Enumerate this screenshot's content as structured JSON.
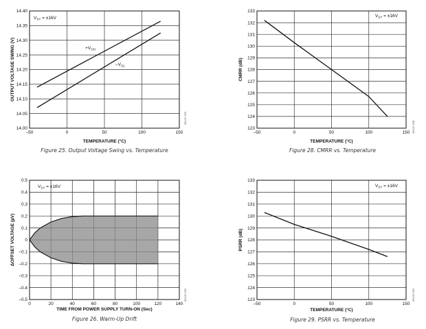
{
  "chart_data": [
    {
      "type": "line",
      "caption": "Figure 25. Output Voltage Swing vs. Temperature",
      "code": "06147-025",
      "xlabel": "TEMPERATURE (°C)",
      "ylabel": "OUTPUT VOLTAGE SWING (V)",
      "xlim": [
        -50,
        150
      ],
      "ylim": [
        14.0,
        14.4
      ],
      "xticks": [
        -50,
        0,
        50,
        100,
        150
      ],
      "xtick_labels": [
        "–50",
        "0",
        "50",
        "100",
        "150"
      ],
      "yticks": [
        14.0,
        14.05,
        14.1,
        14.15,
        14.2,
        14.25,
        14.3,
        14.35,
        14.4
      ],
      "ytick_labels": [
        "14.00",
        "14.05",
        "14.10",
        "14.15",
        "14.20",
        "14.25",
        "14.30",
        "14.35",
        "14.40"
      ],
      "annotation": {
        "main": "V",
        "sub": "SY",
        "rest": " = ±16V"
      },
      "series": [
        {
          "name": "+VOH",
          "label_main": "+V",
          "label_sub": "OH",
          "x": [
            -40,
            125
          ],
          "y": [
            14.14,
            14.365
          ]
        },
        {
          "name": "–VOL",
          "label_main": "–V",
          "label_sub": "OL",
          "x": [
            -40,
            125
          ],
          "y": [
            14.07,
            14.325
          ]
        }
      ]
    },
    {
      "type": "line",
      "caption": "Figure 28. CMRR vs. Temperature",
      "code": "06147-028",
      "xlabel": "TEMPERATURE (°C)",
      "ylabel": "CMRR (dB)",
      "xlim": [
        -50,
        150
      ],
      "ylim": [
        123,
        133
      ],
      "xticks": [
        -50,
        0,
        50,
        100,
        150
      ],
      "xtick_labels": [
        "–50",
        "0",
        "50",
        "100",
        "150"
      ],
      "yticks": [
        123,
        124,
        125,
        126,
        127,
        128,
        129,
        130,
        131,
        132,
        133
      ],
      "ytick_labels": [
        "123",
        "124",
        "125",
        "126",
        "127",
        "128",
        "129",
        "130",
        "131",
        "132",
        "133"
      ],
      "annotation": {
        "main": "V",
        "sub": "SY",
        "rest": " = ±16V"
      },
      "series": [
        {
          "name": "CMRR",
          "x": [
            -40,
            0,
            50,
            100,
            125
          ],
          "y": [
            132.2,
            130.3,
            128.0,
            125.7,
            124.0
          ]
        }
      ]
    },
    {
      "type": "area",
      "caption": "Figure 26. Warm-Up Drift",
      "code": "06147-026",
      "xlabel": "TIME FROM POWER SUPPLY TURN-ON (Sec)",
      "ylabel": "ΔOFFSET VOLTAGE (µV)",
      "xlim": [
        0,
        140
      ],
      "ylim": [
        -0.5,
        0.5
      ],
      "xticks": [
        0,
        20,
        40,
        60,
        80,
        100,
        120,
        140
      ],
      "xtick_labels": [
        "0",
        "20",
        "40",
        "60",
        "80",
        "100",
        "120",
        "140"
      ],
      "yticks": [
        -0.5,
        -0.4,
        -0.3,
        -0.2,
        -0.1,
        0,
        0.1,
        0.2,
        0.3,
        0.4,
        0.5
      ],
      "ytick_labels": [
        "–0.5",
        "–0.4",
        "–0.3",
        "–0.2",
        "–0.1",
        "0",
        "0.1",
        "0.2",
        "0.3",
        "0.4",
        "0.5"
      ],
      "annotation": {
        "main": "V",
        "sub": "SY",
        "rest": " = ±16V"
      },
      "series": [
        {
          "name": "upper envelope",
          "x": [
            0,
            5,
            10,
            20,
            30,
            40,
            50,
            60,
            80,
            100,
            120
          ],
          "y": [
            0,
            0.06,
            0.1,
            0.15,
            0.18,
            0.195,
            0.2,
            0.2,
            0.2,
            0.2,
            0.2
          ]
        },
        {
          "name": "lower envelope",
          "x": [
            0,
            5,
            10,
            20,
            30,
            40,
            50,
            60,
            80,
            100,
            120
          ],
          "y": [
            0,
            -0.06,
            -0.1,
            -0.15,
            -0.18,
            -0.195,
            -0.2,
            -0.2,
            -0.2,
            -0.2,
            -0.2
          ]
        }
      ]
    },
    {
      "type": "line",
      "caption": "Figure 29. PSRR vs. Temperature",
      "code": "06147-029",
      "xlabel": "TEMPERATURE (°C)",
      "ylabel": "PSRR (dB)",
      "xlim": [
        -50,
        150
      ],
      "ylim": [
        123,
        133
      ],
      "xticks": [
        -50,
        0,
        50,
        100,
        150
      ],
      "xtick_labels": [
        "–50",
        "0",
        "50",
        "100",
        "150"
      ],
      "yticks": [
        123,
        124,
        125,
        126,
        127,
        128,
        129,
        130,
        131,
        132,
        133
      ],
      "ytick_labels": [
        "123",
        "124",
        "125",
        "126",
        "127",
        "128",
        "129",
        "130",
        "131",
        "132",
        "133"
      ],
      "annotation": {
        "main": "V",
        "sub": "SY",
        "rest": " = ±16V"
      },
      "series": [
        {
          "name": "PSRR",
          "x": [
            -40,
            0,
            50,
            100,
            125
          ],
          "y": [
            130.3,
            129.3,
            128.3,
            127.2,
            126.6
          ]
        }
      ]
    }
  ]
}
